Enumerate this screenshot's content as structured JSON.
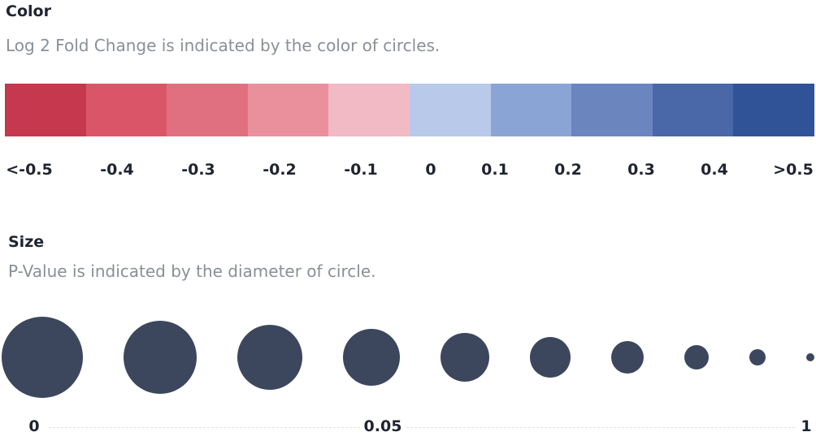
{
  "color_legend": {
    "title": "Color",
    "description": "Log 2 Fold Change is indicated by the color of circles.",
    "swatches": [
      "#c5384d",
      "#db5568",
      "#e07080",
      "#ea909c",
      "#f1bac4",
      "#b8c9ea",
      "#8aa4d6",
      "#6b85bf",
      "#4a68a7",
      "#305297"
    ],
    "labels": [
      "<-0.5",
      "-0.4",
      "-0.3",
      "-0.2",
      "-0.1",
      "0",
      "0.1",
      "0.2",
      "0.3",
      "0.4",
      ">0.5"
    ]
  },
  "size_legend": {
    "title": "Size",
    "description": "P-Value is indicated by the diameter of circle.",
    "circle_color": "#3c475e",
    "circle_count": 10,
    "labels": [
      "0",
      "0.05",
      "1"
    ]
  }
}
